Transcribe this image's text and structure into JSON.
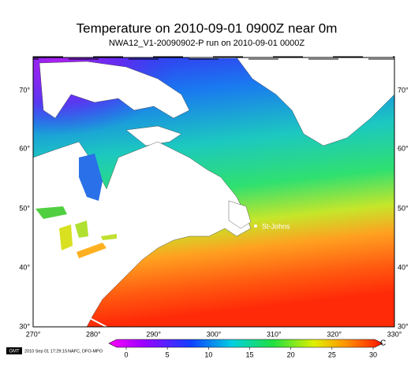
{
  "title": "Temperature on 2010-09-01 0900Z near 0m",
  "subtitle": "NWA12_V1-20090902-P run on 2010-09-01 0000Z",
  "lat_labels": [
    "70°",
    "60°",
    "50°",
    "40°",
    "30°"
  ],
  "lon_labels": [
    "270°",
    "280°",
    "290°",
    "300°",
    "310°",
    "320°",
    "330°"
  ],
  "place_label": "St-Johns",
  "colorbar": {
    "ticks": [
      0,
      5,
      10,
      15,
      20,
      25,
      30
    ],
    "unit": "C"
  },
  "footer": {
    "logo": "GMT",
    "timestamp": "2010 Sep 01 17:29:15",
    "credit": "NAFC, DFO-MPO"
  }
}
